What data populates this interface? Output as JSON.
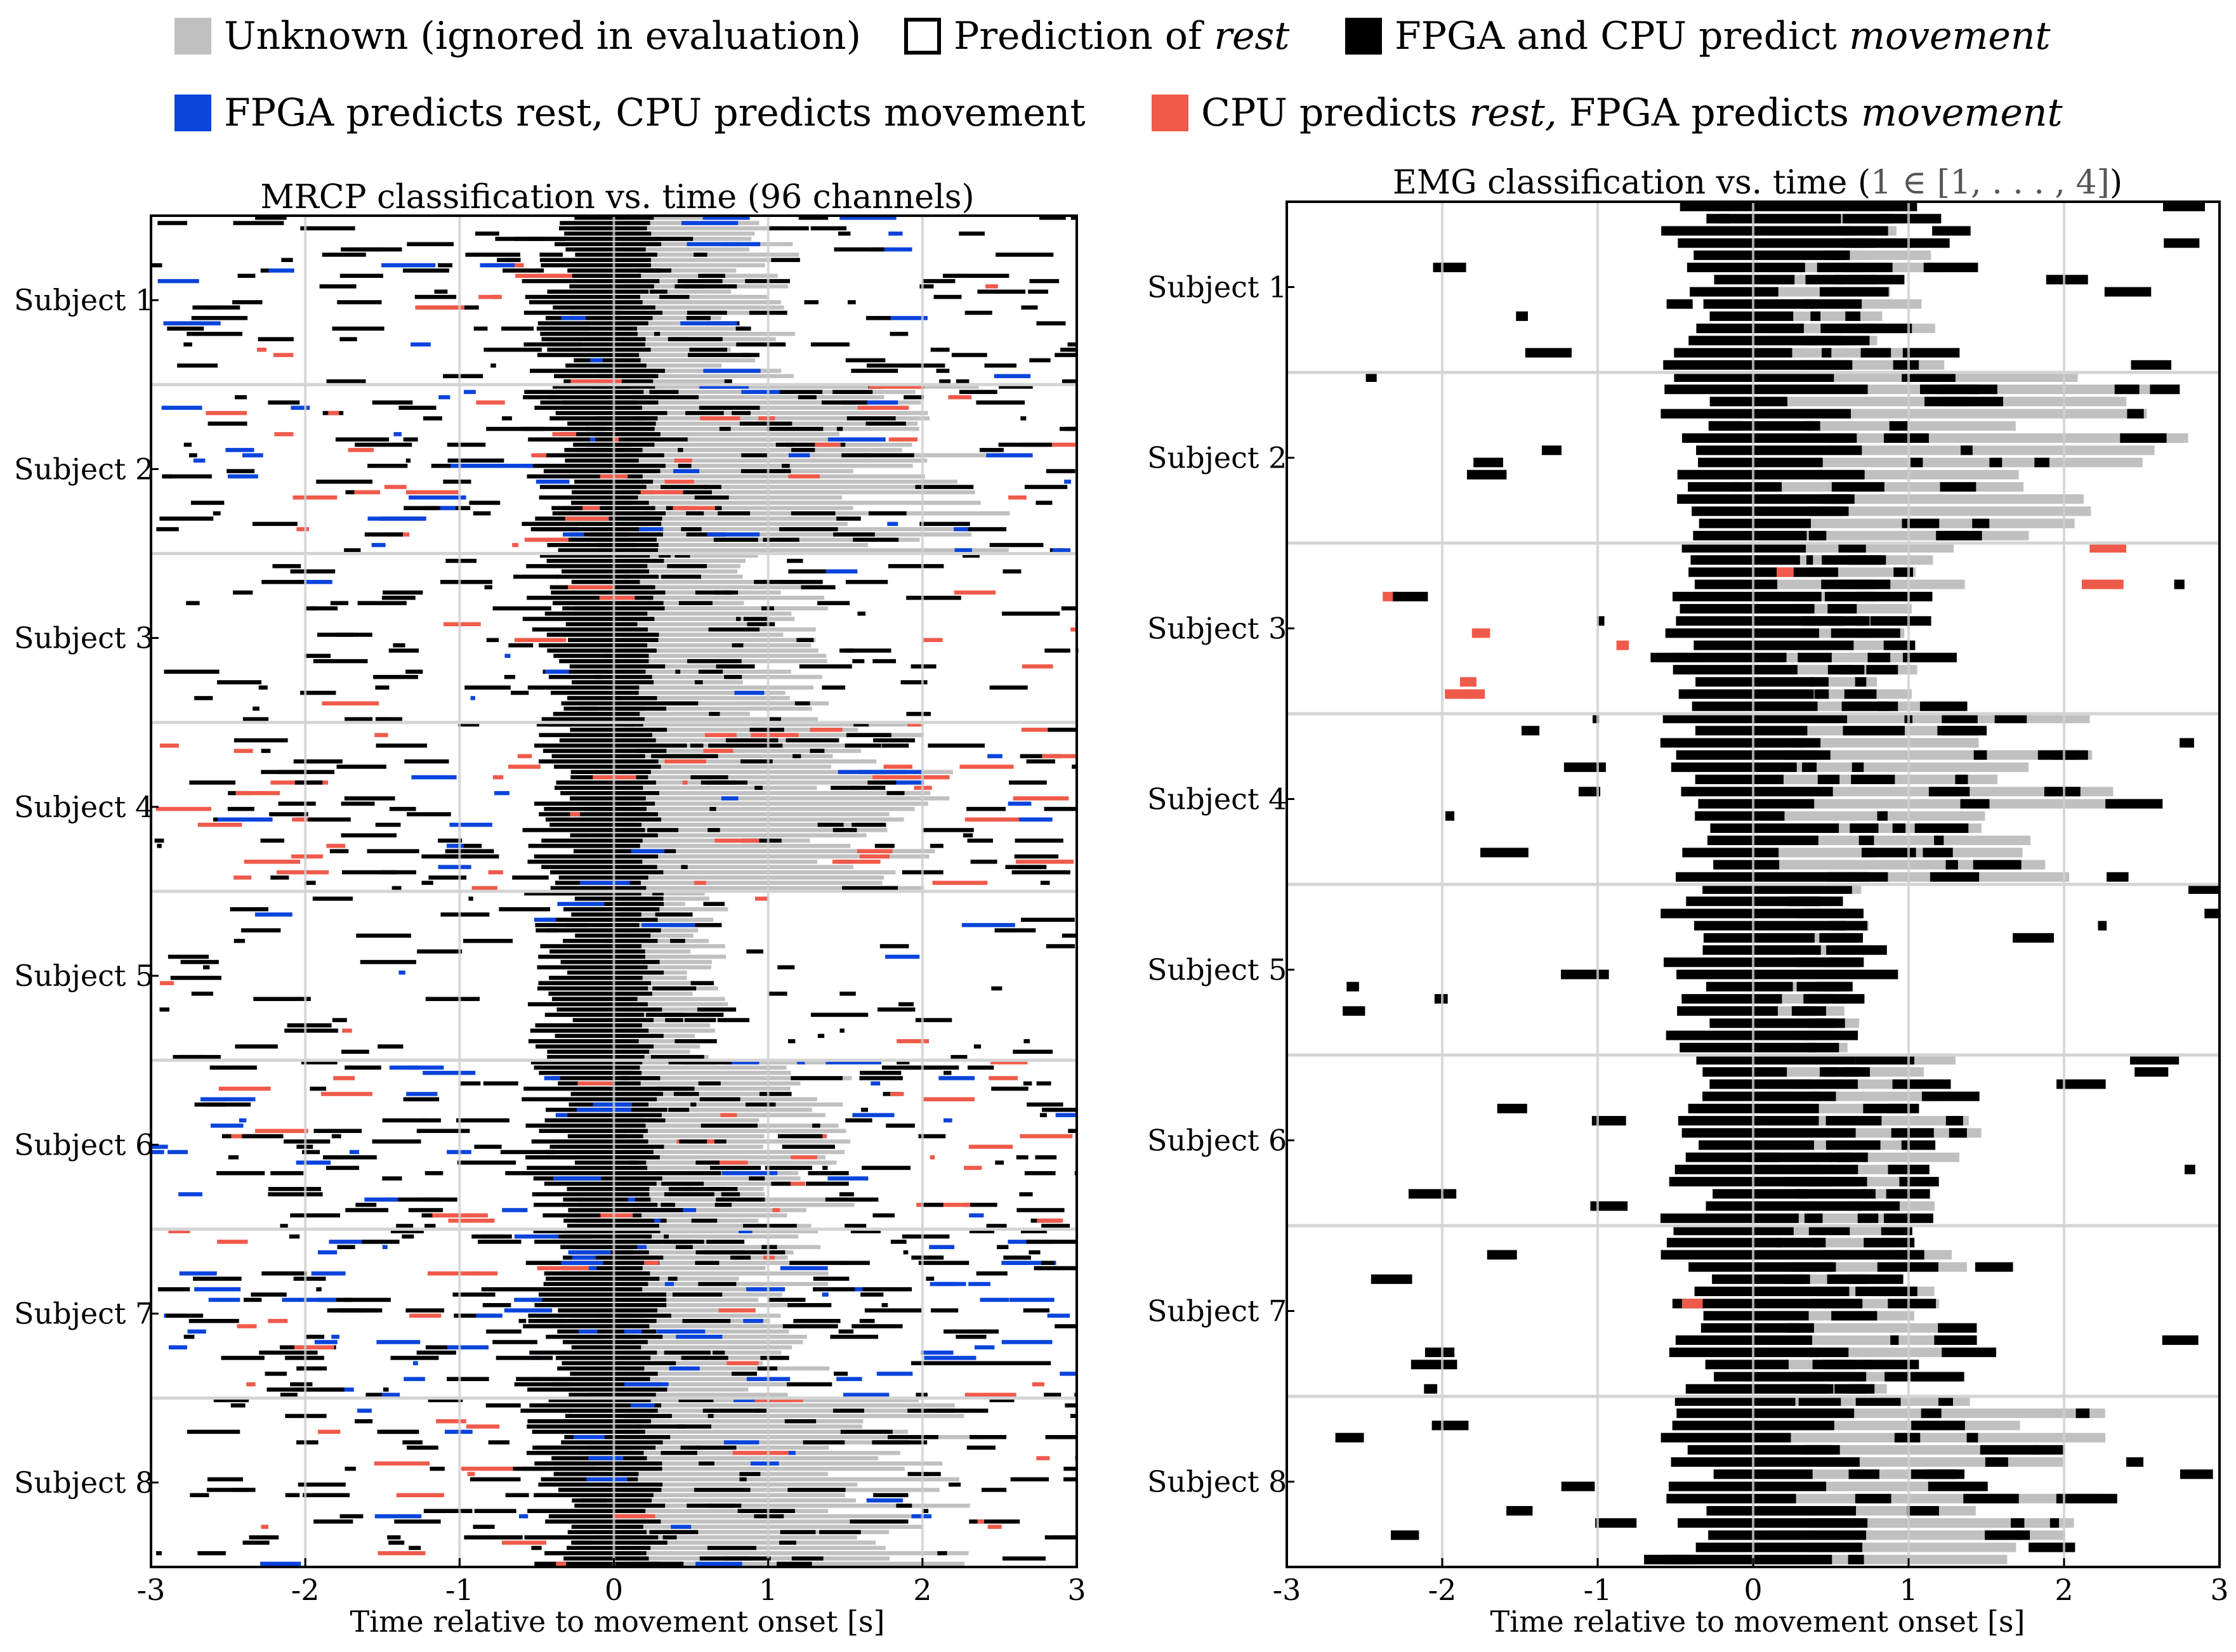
{
  "legend": [
    {
      "key": "unknown",
      "label": "Unknown (ignored in evaluation)",
      "color": "#c0c0c0"
    },
    {
      "key": "rest",
      "label_a": "Prediction of ",
      "label_em": "rest",
      "color": "#ffffff"
    },
    {
      "key": "both",
      "label_a": "FPGA and CPU predict ",
      "label_em": "movement",
      "color": "#000000"
    },
    {
      "key": "blue",
      "label": "FPGA predicts rest, CPU predicts movement",
      "color": "#0a44dc"
    },
    {
      "key": "red",
      "label_a": "CPU predicts ",
      "label_em": "rest,",
      "label_b": " FPGA predicts ",
      "label_em2": "movement",
      "color": "#f05a4a"
    }
  ],
  "chart_data": [
    {
      "type": "raster",
      "title": "MRCP classification vs. time (96 channels)",
      "xlabel": "Time relative to movement onset [s]",
      "xlim": [
        -3,
        3
      ],
      "xticks": [
        -3,
        -2,
        -1,
        0,
        1,
        2,
        3
      ],
      "x_tick_labels": [
        "-3",
        "-2",
        "-1",
        "0",
        "1",
        "2",
        "3"
      ],
      "subjects": [
        "Subject 1",
        "Subject 2",
        "Subject 3",
        "Subject 4",
        "Subject 5",
        "Subject 6",
        "Subject 7",
        "Subject 8"
      ],
      "grid": true,
      "unknown_region_start_s": 0.05,
      "unknown_region_end_s": [
        1.2,
        2.6,
        1.4,
        2.2,
        0.75,
        1.6,
        1.4,
        2.4
      ],
      "noise_density": [
        0.07,
        0.09,
        0.06,
        0.09,
        0.04,
        0.1,
        0.1,
        0.07
      ],
      "blue_share": [
        0.12,
        0.18,
        0.08,
        0.1,
        0.05,
        0.18,
        0.3,
        0.1
      ],
      "red_share": [
        0.1,
        0.18,
        0.08,
        0.3,
        0.05,
        0.18,
        0.08,
        0.12
      ]
    },
    {
      "type": "raster",
      "title_a": "EMG classification vs. time (",
      "title_math": "1 ∈ [1, . . . , 4]",
      "title_b": ")",
      "xlabel": "Time relative to movement onset [s]",
      "xlim": [
        -3,
        3
      ],
      "xticks": [
        -3,
        -2,
        -1,
        0,
        1,
        2,
        3
      ],
      "x_tick_labels": [
        "-3",
        "-2",
        "-1",
        "0",
        "1",
        "2",
        "3"
      ],
      "subjects": [
        "Subject 1",
        "Subject 2",
        "Subject 3",
        "Subject 4",
        "Subject 5",
        "Subject 6",
        "Subject 7",
        "Subject 8"
      ],
      "grid": true,
      "unknown_region_start_s": 0.05,
      "unknown_region_end_s": [
        1.3,
        2.8,
        1.4,
        2.5,
        0.75,
        1.6,
        1.5,
        2.3
      ],
      "noise_density": [
        0.01,
        0.012,
        0.018,
        0.012,
        0.008,
        0.01,
        0.01,
        0.01
      ],
      "blue_share": [
        0,
        0,
        0,
        0,
        0,
        0,
        0,
        0
      ],
      "red_share": [
        0,
        0,
        0.55,
        0.05,
        0,
        0.03,
        0.1,
        0
      ]
    }
  ]
}
